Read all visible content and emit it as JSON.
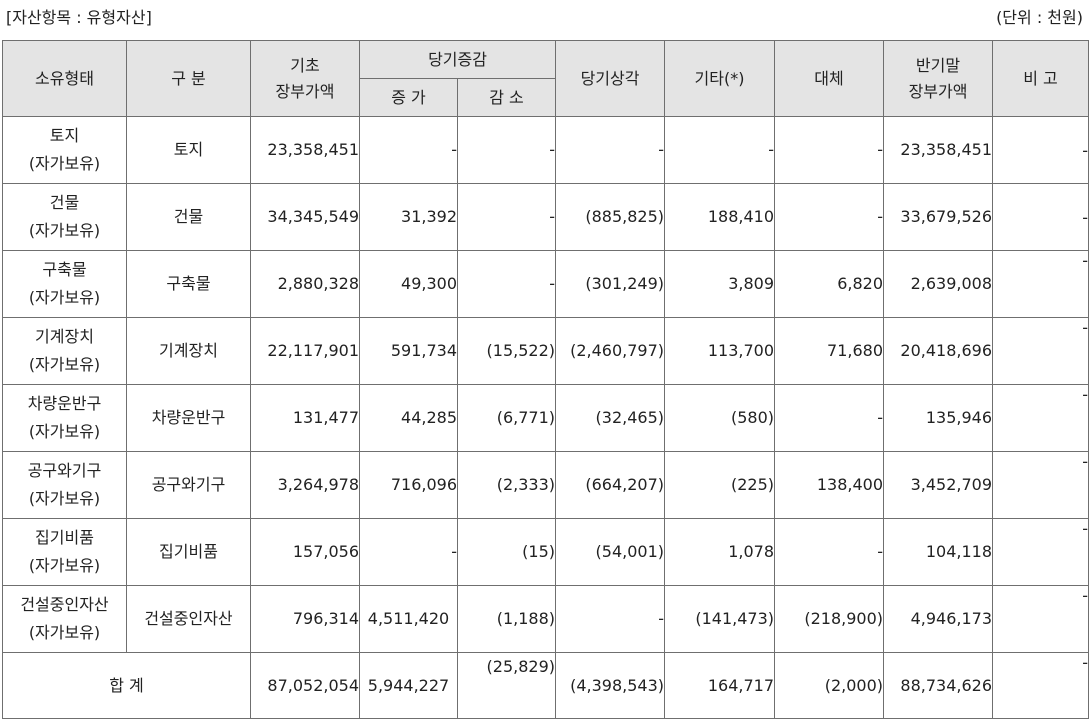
{
  "header": {
    "left_label": "[자산항목 : 유형자산]",
    "right_label": "(단위 : 천원)"
  },
  "columns": {
    "ownership": "소유형태",
    "category": "구 분",
    "opening_line1": "기초",
    "opening_line2": "장부가액",
    "change_group": "당기증감",
    "increase": "증 가",
    "decrease": "감 소",
    "depreciation": "당기상각",
    "other": "기타(*)",
    "transfer": "대체",
    "closing_line1": "반기말",
    "closing_line2": "장부가액",
    "remarks": "비 고"
  },
  "rows": [
    {
      "owner1": "토지",
      "owner2": "(자가보유)",
      "category": "토지",
      "opening": "23,358,451",
      "increase": "-",
      "decrease": "-",
      "depreciation": "-",
      "other": "-",
      "transfer": "-",
      "closing": "23,358,451",
      "remarks": "-"
    },
    {
      "owner1": "건물",
      "owner2": "(자가보유)",
      "category": "건물",
      "opening": "34,345,549",
      "increase": "31,392",
      "decrease": "-",
      "depreciation": "(885,825)",
      "other": "188,410",
      "transfer": "-",
      "closing": "33,679,526",
      "remarks": "-"
    },
    {
      "owner1": "구축물",
      "owner2": "(자가보유)",
      "category": "구축물",
      "opening": "2,880,328",
      "increase": "49,300",
      "decrease": "-",
      "depreciation": "(301,249)",
      "other": "3,809",
      "transfer": "6,820",
      "closing": "2,639,008",
      "remarks": "-"
    },
    {
      "owner1": "기계장치",
      "owner2": "(자가보유)",
      "category": "기계장치",
      "opening": "22,117,901",
      "increase": "591,734",
      "decrease": "(15,522)",
      "depreciation": "(2,460,797)",
      "other": "113,700",
      "transfer": "71,680",
      "closing": "20,418,696",
      "remarks": "-"
    },
    {
      "owner1": "차량운반구",
      "owner2": "(자가보유)",
      "category": "차량운반구",
      "opening": "131,477",
      "increase": "44,285",
      "decrease": "(6,771)",
      "depreciation": "(32,465)",
      "other": "(580)",
      "transfer": "-",
      "closing": "135,946",
      "remarks": "-"
    },
    {
      "owner1": "공구와기구",
      "owner2": "(자가보유)",
      "category": "공구와기구",
      "opening": "3,264,978",
      "increase": "716,096",
      "decrease": "(2,333)",
      "depreciation": "(664,207)",
      "other": "(225)",
      "transfer": "138,400",
      "closing": "3,452,709",
      "remarks": "-"
    },
    {
      "owner1": "집기비품",
      "owner2": "(자가보유)",
      "category": "집기비품",
      "opening": "157,056",
      "increase": "-",
      "decrease": "(15)",
      "depreciation": "(54,001)",
      "other": "1,078",
      "transfer": "-",
      "closing": "104,118",
      "remarks": "-"
    },
    {
      "owner1": "건설중인자산",
      "owner2": "(자가보유)",
      "category": "건설중인자산",
      "opening": "796,314",
      "increase": "4,511,420",
      "decrease": "(1,188)",
      "depreciation": "-",
      "other": "(141,473)",
      "transfer": "(218,900)",
      "closing": "4,946,173",
      "remarks": "-"
    }
  ],
  "total": {
    "label": "합 계",
    "opening": "87,052,054",
    "increase": "5,944,227",
    "decrease": "(25,829)",
    "depreciation": "(4,398,543)",
    "other": "164,717",
    "transfer": "(2,000)",
    "closing": "88,734,626",
    "remarks": "-"
  }
}
